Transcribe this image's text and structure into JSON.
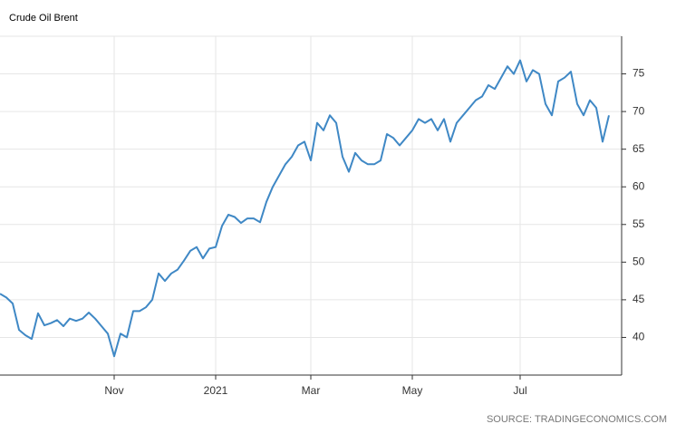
{
  "chart_data": {
    "type": "line",
    "title": "Crude Oil Brent",
    "source": "SOURCE: TRADINGECONOMICS.COM",
    "categories": [
      null,
      null,
      null,
      null,
      null,
      null,
      null,
      null,
      null,
      null,
      null,
      null,
      null,
      null,
      null,
      null,
      null,
      null,
      "Nov",
      null,
      null,
      null,
      null,
      null,
      null,
      null,
      null,
      null,
      null,
      null,
      null,
      null,
      null,
      null,
      "2021",
      null,
      null,
      null,
      null,
      null,
      null,
      null,
      null,
      null,
      null,
      null,
      null,
      null,
      null,
      "Mar",
      null,
      null,
      null,
      null,
      null,
      null,
      null,
      null,
      null,
      null,
      null,
      null,
      null,
      null,
      null,
      "May",
      null,
      null,
      null,
      null,
      null,
      null,
      null,
      null,
      null,
      null,
      null,
      null,
      null,
      null,
      null,
      null,
      "Jul",
      null,
      null,
      null,
      null,
      null,
      null,
      null,
      null,
      null,
      null,
      null,
      null,
      null,
      null
    ],
    "xlim": [
      0,
      98
    ],
    "series": [
      {
        "name": "Crude Oil Brent",
        "color": "#3f88c5",
        "values": [
          45.8,
          45.3,
          44.5,
          41,
          40.3,
          39.8,
          43.2,
          41.6,
          41.9,
          42.3,
          41.5,
          42.5,
          42.2,
          42.5,
          43.3,
          42.5,
          41.5,
          40.5,
          37.5,
          40.5,
          40,
          43.5,
          43.5,
          44,
          45,
          48.5,
          47.5,
          48.5,
          49,
          50.2,
          51.5,
          52,
          50.5,
          51.8,
          52,
          54.8,
          56.3,
          56,
          55.2,
          55.8,
          55.8,
          55.3,
          58,
          60,
          61.5,
          63,
          64,
          65.5,
          66,
          63.5,
          68.5,
          67.5,
          69.5,
          68.5,
          64,
          62,
          64.5,
          63.5,
          63,
          63,
          63.5,
          67,
          66.5,
          65.5,
          66.5,
          67.5,
          69,
          68.5,
          69,
          67.5,
          69,
          66,
          68.5,
          69.5,
          70.5,
          71.5,
          72,
          73.5,
          73,
          74.5,
          76,
          75,
          76.8,
          74,
          75.5,
          75,
          71,
          69.5,
          74,
          74.5,
          75.3,
          71,
          69.5,
          71.5,
          70.5,
          66,
          69.5
        ]
      }
    ],
    "ylim": [
      35,
      80
    ],
    "yticks": [
      40,
      45,
      50,
      55,
      60,
      65,
      70,
      75
    ],
    "grid": true
  }
}
